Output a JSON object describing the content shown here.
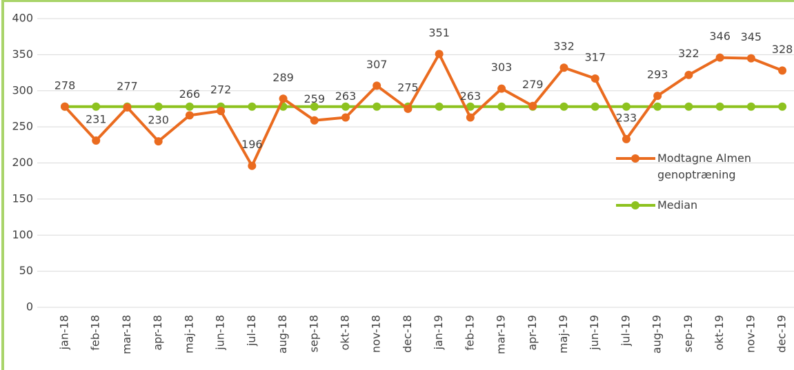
{
  "chart_data": {
    "type": "line",
    "categories": [
      "jan-18",
      "feb-18",
      "mar-18",
      "apr-18",
      "maj-18",
      "jun-18",
      "jul-18",
      "aug-18",
      "sep-18",
      "okt-18",
      "nov-18",
      "dec-18",
      "jan-19",
      "feb-19",
      "mar-19",
      "apr-19",
      "maj-19",
      "jun-19",
      "jul-19",
      "aug-19",
      "sep-19",
      "okt-19",
      "nov-19",
      "dec-19"
    ],
    "series": [
      {
        "name": "Modtagne Almen genoptræning",
        "color": "#ea6b1f",
        "values": [
          278,
          231,
          277,
          230,
          266,
          272,
          196,
          289,
          259,
          263,
          307,
          275,
          351,
          263,
          303,
          279,
          332,
          317,
          233,
          293,
          322,
          346,
          345,
          328
        ],
        "data_labels": true
      },
      {
        "name": "Median",
        "color": "#8dc21f",
        "values": [
          278,
          278,
          278,
          278,
          278,
          278,
          278,
          278,
          278,
          278,
          278,
          278,
          278,
          278,
          278,
          278,
          278,
          278,
          278,
          278,
          278,
          278,
          278,
          278
        ],
        "data_labels": false
      }
    ],
    "ylim": [
      0,
      400
    ],
    "yticks": [
      0,
      50,
      100,
      150,
      200,
      250,
      300,
      350,
      400
    ],
    "grid": true,
    "legend": "right"
  }
}
